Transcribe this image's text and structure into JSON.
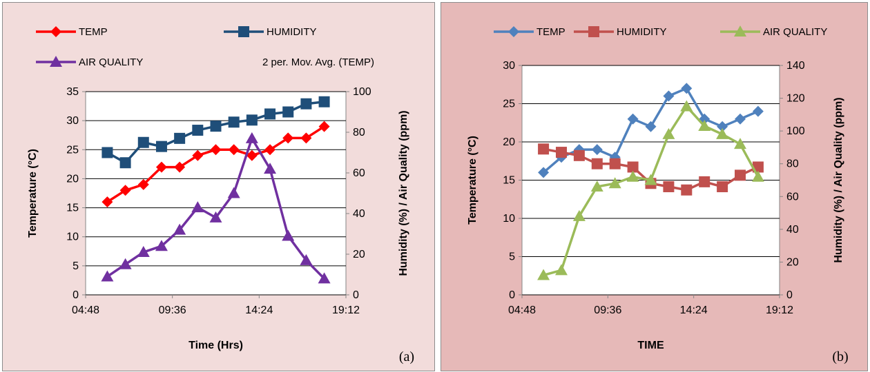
{
  "chart_data": [
    {
      "id": "a",
      "type": "line",
      "panel_label": "(a)",
      "background": "#f2dcdb",
      "xlabel": "Time (Hrs)",
      "ylabel": "Temperature (°C)",
      "y2label": "Humidity (%)  / Air Quality (ppm)",
      "xlim": [
        4.8,
        19.2
      ],
      "xticks": [
        "04:48",
        "09:36",
        "14:24",
        "19:12"
      ],
      "ylim": [
        0,
        35
      ],
      "yticks": [
        "0",
        "5",
        "10",
        "15",
        "20",
        "25",
        "30",
        "35"
      ],
      "y2lim": [
        0,
        100
      ],
      "y2ticks": [
        "0",
        "20",
        "40",
        "60",
        "80",
        "100"
      ],
      "grid": true,
      "legend": {
        "position": "top",
        "extra_entry": "2 per. Mov. Avg. (TEMP)"
      },
      "series": [
        {
          "name": "TEMP",
          "axis": "left",
          "marker": "diamond",
          "color": "#ff0000",
          "x": [
            6,
            7,
            8,
            9,
            10,
            11,
            12,
            13,
            14,
            15,
            16,
            17,
            18
          ],
          "values": [
            16,
            18,
            19,
            22,
            22,
            24,
            25,
            25,
            24,
            25,
            27,
            27,
            29
          ]
        },
        {
          "name": "HUMIDITY",
          "axis": "right",
          "marker": "square",
          "color": "#1f4e79",
          "x": [
            6,
            7,
            8,
            9,
            10,
            11,
            12,
            13,
            14,
            15,
            16,
            17,
            18
          ],
          "values": [
            70,
            65,
            75,
            73,
            77,
            81,
            83,
            85,
            86,
            89,
            90,
            94,
            95
          ]
        },
        {
          "name": "AIR QUALITY",
          "axis": "right",
          "marker": "triangle",
          "color": "#7030a0",
          "x": [
            6,
            7,
            8,
            9,
            10,
            11,
            12,
            13,
            14,
            15,
            16,
            17,
            18
          ],
          "values": [
            9,
            15,
            21,
            24,
            32,
            43,
            38,
            50,
            77,
            62,
            29,
            17,
            8
          ]
        }
      ]
    },
    {
      "id": "b",
      "type": "line",
      "panel_label": "(b)",
      "background": "#e6b9b8",
      "xlabel": "TIME",
      "ylabel": "Temperature (°C)",
      "y2label": "Humidity (%)  / Air Quality (ppm)",
      "xlim": [
        4.8,
        19.2
      ],
      "xticks": [
        "04:48",
        "09:36",
        "14:24",
        "19:12"
      ],
      "ylim": [
        0,
        30
      ],
      "yticks": [
        "0",
        "5",
        "10",
        "15",
        "20",
        "25",
        "30"
      ],
      "y2lim": [
        0,
        140
      ],
      "y2ticks": [
        "0",
        "20",
        "40",
        "60",
        "80",
        "100",
        "120",
        "140"
      ],
      "grid": true,
      "legend": {
        "position": "top"
      },
      "series": [
        {
          "name": "TEMP",
          "axis": "left",
          "marker": "diamond",
          "color": "#4f81bd",
          "x": [
            6,
            7,
            8,
            9,
            10,
            11,
            12,
            13,
            14,
            15,
            16,
            17,
            18
          ],
          "values": [
            16,
            18,
            19,
            19,
            18,
            23,
            22,
            26,
            27,
            23,
            22,
            23,
            24
          ]
        },
        {
          "name": "HUMIDITY",
          "axis": "right",
          "marker": "square",
          "color": "#c0504d",
          "x": [
            6,
            7,
            8,
            9,
            10,
            11,
            12,
            13,
            14,
            15,
            16,
            17,
            18
          ],
          "values": [
            89,
            87,
            85,
            80,
            80,
            78,
            68,
            66,
            64,
            69,
            66,
            73,
            78
          ]
        },
        {
          "name": "AIR QUALITY",
          "axis": "right",
          "marker": "triangle",
          "color": "#9bbb59",
          "x": [
            6,
            7,
            8,
            9,
            10,
            11,
            12,
            13,
            14,
            15,
            16,
            17,
            18
          ],
          "values": [
            12,
            15,
            48,
            66,
            68,
            72,
            70,
            98,
            115,
            103,
            98,
            92,
            72
          ]
        }
      ]
    }
  ]
}
